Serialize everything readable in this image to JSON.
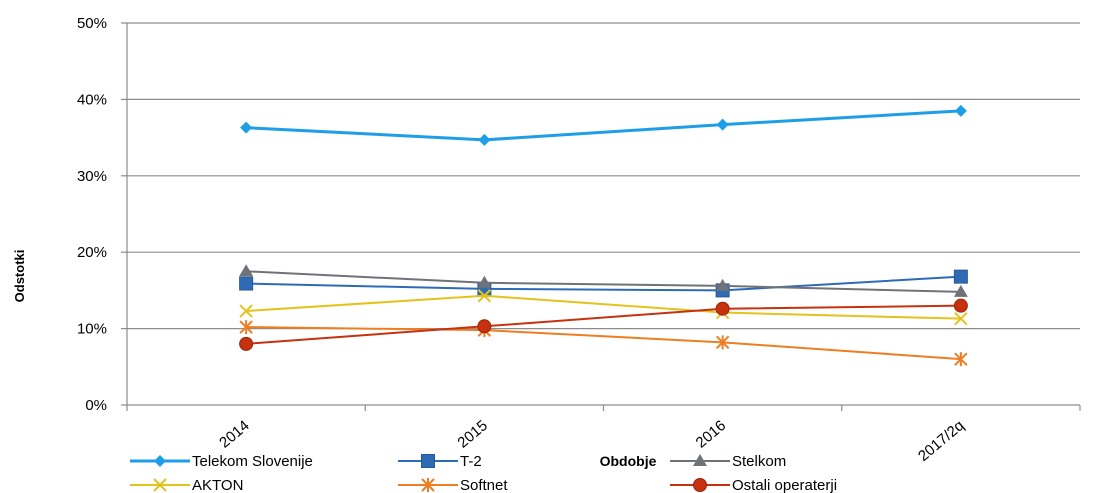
{
  "chart_data": {
    "type": "line",
    "title": "",
    "xlabel": "Obdobje",
    "ylabel": "Odstotki",
    "categories": [
      "2014",
      "2015",
      "2016",
      "2017/2q"
    ],
    "ylim": [
      0,
      50
    ],
    "y_ticks": [
      0,
      10,
      20,
      30,
      40,
      50
    ],
    "y_tick_labels": [
      "0%",
      "10%",
      "20%",
      "30%",
      "40%",
      "50%"
    ],
    "grid": true,
    "legend_position": "bottom",
    "series": [
      {
        "name": "Telekom Slovenije",
        "values": [
          36.3,
          34.7,
          36.7,
          38.5
        ],
        "color": "#1f9ee8",
        "marker": "diamond"
      },
      {
        "name": "T-2",
        "values": [
          15.9,
          15.2,
          15.0,
          16.8
        ],
        "color": "#2e6bb5",
        "marker": "square"
      },
      {
        "name": "Stelkom",
        "values": [
          17.5,
          16.0,
          15.6,
          14.8
        ],
        "color": "#6f7378",
        "marker": "triangle"
      },
      {
        "name": "AKTON",
        "values": [
          12.3,
          14.3,
          12.1,
          11.3
        ],
        "color": "#e3c31c",
        "marker": "x"
      },
      {
        "name": "Softnet",
        "values": [
          10.2,
          9.8,
          8.2,
          6.0
        ],
        "color": "#ef7d22",
        "marker": "star"
      },
      {
        "name": "Ostali operaterji",
        "values": [
          8.0,
          10.3,
          12.6,
          13.0
        ],
        "color": "#c6310f",
        "marker": "circle"
      }
    ]
  }
}
